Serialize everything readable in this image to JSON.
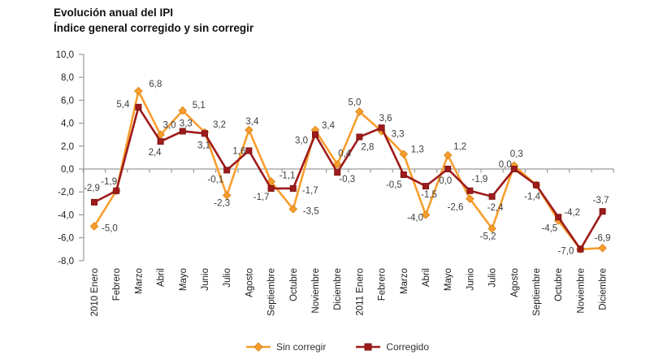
{
  "title": {
    "line1": "Evolución anual del IPI",
    "line2": "Índice general corregido y sin corregir"
  },
  "chart_data": {
    "type": "line",
    "title": "Evolución anual del IPI",
    "subtitle": "Índice general corregido y sin corregir",
    "categories": [
      "2010 Enero",
      "Febrero",
      "Marzo",
      "Abril",
      "Mayo",
      "Junio",
      "Julio",
      "Agosto",
      "Septiembre",
      "Octubre",
      "Noviembre",
      "Diciembre",
      "2011 Enero",
      "Febrero",
      "Marzo",
      "Abril",
      "Mayo",
      "Junio",
      "Julio",
      "Agosto",
      "Septiembre",
      "Octubre",
      "Noviembre",
      "Diciembre"
    ],
    "series": [
      {
        "name": "Sin corregir",
        "marker": "diamond",
        "color": "#F89E2E",
        "marker_stroke": "#DD861A",
        "values": [
          -5.0,
          -1.9,
          6.8,
          3.0,
          5.1,
          3.2,
          -2.3,
          3.4,
          -1.1,
          -3.5,
          3.4,
          0.4,
          5.0,
          3.3,
          1.3,
          -4.0,
          1.2,
          -2.6,
          -5.2,
          0.3,
          -1.4,
          -4.5,
          -7.0,
          -6.9
        ]
      },
      {
        "name": "Corregido",
        "marker": "square",
        "color": "#9E1B1B",
        "marker_stroke": "#7A1212",
        "values": [
          -2.9,
          -1.9,
          5.4,
          2.4,
          3.3,
          3.1,
          -0.1,
          1.6,
          -1.7,
          -1.7,
          3.0,
          -0.3,
          2.8,
          3.6,
          -0.5,
          -1.5,
          0.0,
          -1.9,
          -2.4,
          0.0,
          -1.4,
          -4.2,
          -7.0,
          -3.7
        ]
      }
    ],
    "ylim": [
      -8,
      10
    ],
    "ytick_step": 2,
    "ytick_labels": [
      "10,0",
      "8,0",
      "6,0",
      "4,0",
      "2,0",
      "0,0",
      "-2,0",
      "-4,0",
      "-6,0",
      "-8,0"
    ],
    "decimal_separator": ",",
    "grid": false,
    "legend_position": "bottom",
    "axis_color": "#9a9a9a",
    "tick_label_color": "#1a1a1a",
    "data_label_color": "#3d3d3d"
  }
}
